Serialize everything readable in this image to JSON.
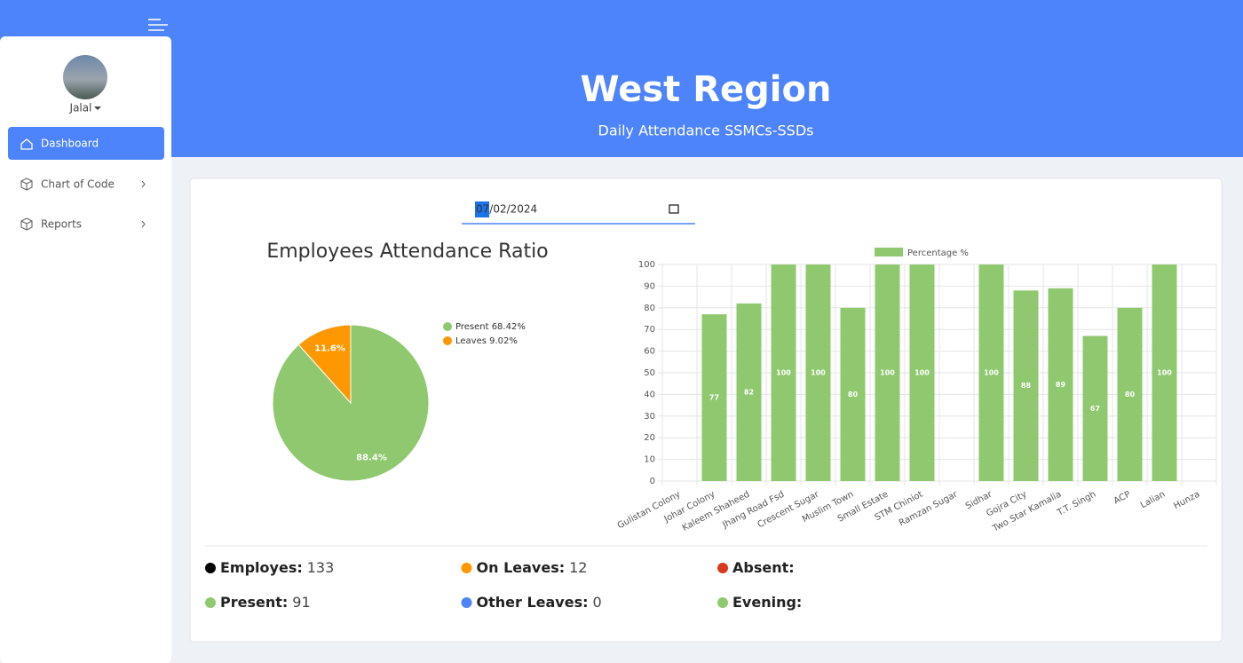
{
  "sidebar": {
    "user": "Jalal",
    "menu": [
      "Dashboard",
      "Chart of Code",
      "Reports"
    ]
  },
  "header": {
    "title": "West Region",
    "subtitle": "Daily Attendance SSMCs-SSDs"
  },
  "date": "07/02/2024",
  "chart_data": [
    {
      "type": "pie",
      "title": "Employees Attendance Ratio",
      "labels": [
        "Present 68.42%",
        "Leaves 9.02%"
      ],
      "values": [
        88.4,
        11.6
      ],
      "value_labels": [
        "88.4%",
        "11.6%"
      ],
      "colors": [
        "#8fc86f",
        "#ff9800"
      ]
    },
    {
      "type": "bar",
      "categories": [
        "Gulistan Colony",
        "Johar Colony",
        "Kaleem Shaheed",
        "Jhang Road Fsd",
        "Crescent Sugar",
        "Muslim Town",
        "Small Estate",
        "STM Chiniot",
        "Ramzan Sugar",
        "Sidhar",
        "Gojra City",
        "Two Star Kamalia",
        "T.T. Singh",
        "ACP",
        "Lalian",
        "Hunza"
      ],
      "series": [
        {
          "name": "Percentage %",
          "color": "#8fc86f",
          "values": [
            null,
            77,
            82,
            100,
            100,
            80,
            100,
            100,
            null,
            100,
            88,
            89,
            67,
            80,
            100,
            null
          ]
        }
      ],
      "ylim": [
        0,
        100
      ],
      "yticks": [
        0,
        10,
        20,
        30,
        40,
        50,
        60,
        70,
        80,
        90,
        100
      ],
      "grid": true
    }
  ],
  "stats": [
    {
      "label": "Employes:",
      "value": 133,
      "color": "#000000"
    },
    {
      "label": "On Leaves:",
      "value": 12,
      "color": "#ff9800"
    },
    {
      "label": "Absent:",
      "color": "#d9381e"
    },
    {
      "label": "Present:",
      "value": 91,
      "color": "#8fc86f"
    },
    {
      "label": "Other Leaves:",
      "value": 0,
      "color": "#4d84fb"
    },
    {
      "label": "Evening:",
      "color": "#8fc86f"
    }
  ]
}
